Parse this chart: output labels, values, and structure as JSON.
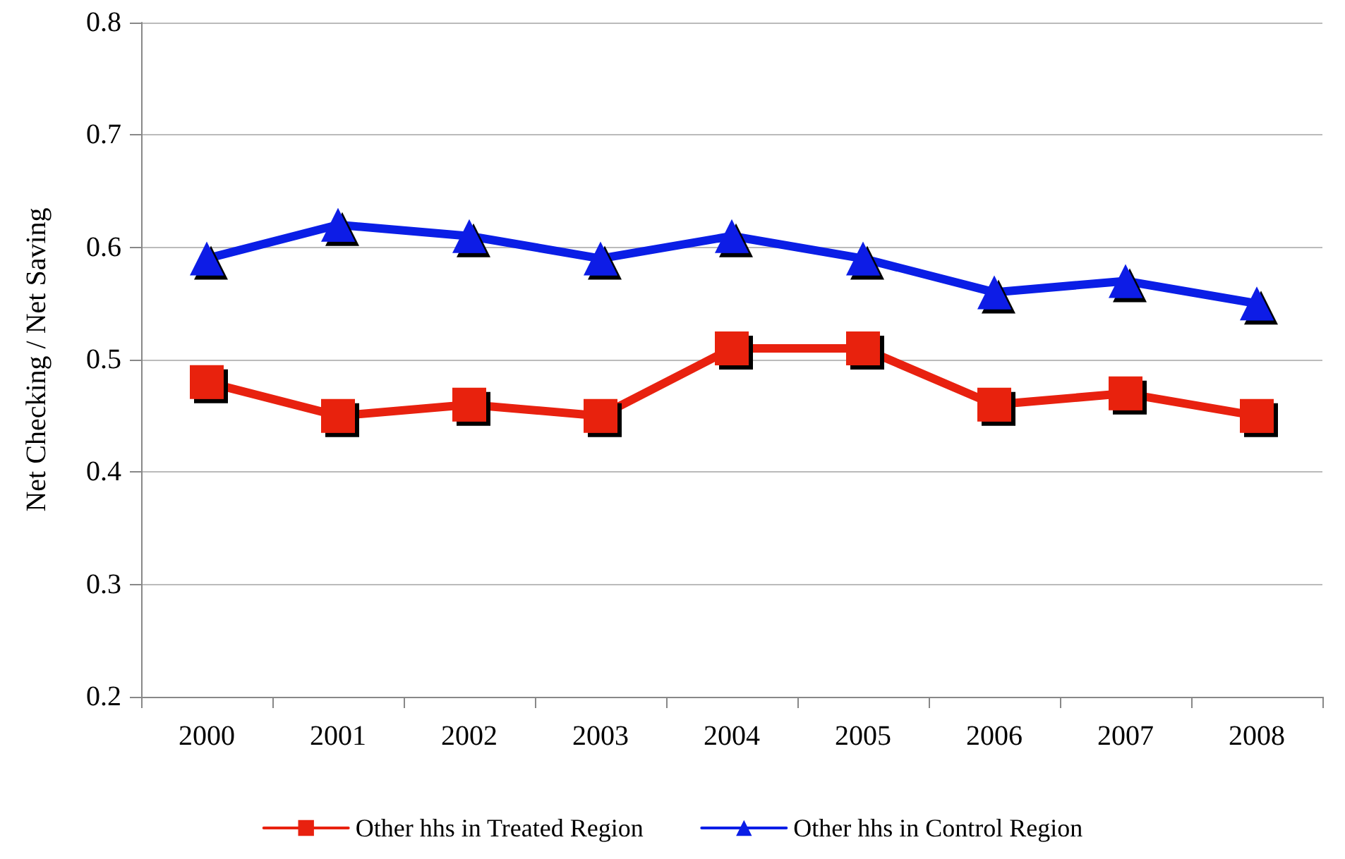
{
  "chart_data": {
    "type": "line",
    "ylabel": "Net Checking / Net Saving",
    "categories": [
      "2000",
      "2001",
      "2002",
      "2003",
      "2004",
      "2005",
      "2006",
      "2007",
      "2008"
    ],
    "series": [
      {
        "name": "Other hhs in Treated Region",
        "color": "#e8210f",
        "marker": "square",
        "values": [
          0.48,
          0.45,
          0.46,
          0.45,
          0.51,
          0.51,
          0.46,
          0.47,
          0.45
        ]
      },
      {
        "name": "Other hhs in Control Region",
        "color": "#0a1ee6",
        "marker": "triangle",
        "values": [
          0.59,
          0.62,
          0.61,
          0.59,
          0.61,
          0.59,
          0.56,
          0.57,
          0.55
        ]
      }
    ],
    "ylim": [
      0.2,
      0.8
    ],
    "yticks": [
      0.2,
      0.3,
      0.4,
      0.5,
      0.6,
      0.7,
      0.8
    ],
    "grid": "y",
    "legend": "bottom",
    "line_style": "solid"
  }
}
